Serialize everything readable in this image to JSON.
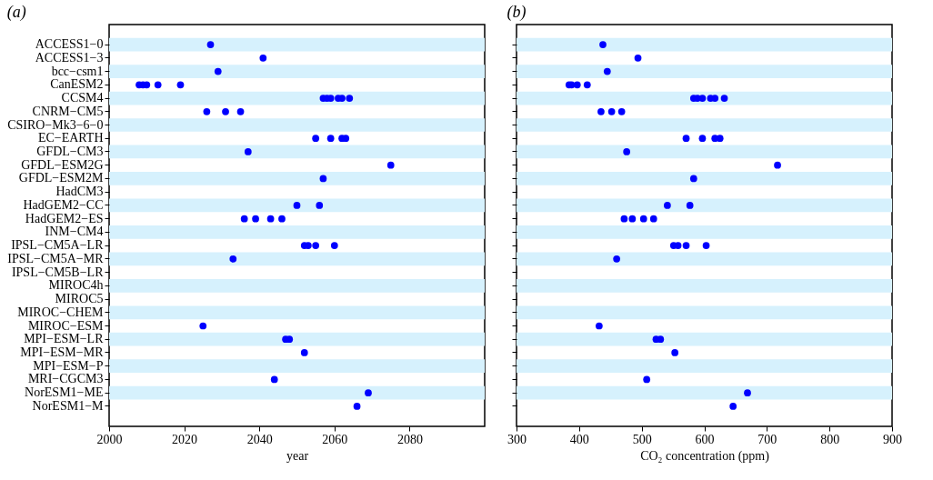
{
  "chart_data": [
    {
      "type": "scatter",
      "title": "(a)",
      "orientation": "horizontal",
      "xlabel": "year",
      "marker": "circle",
      "grid": false,
      "legend": false,
      "categories": [
        "ACCESS1−0",
        "ACCESS1−3",
        "bcc−csm1",
        "CanESM2",
        "CCSM4",
        "CNRM−CM5",
        "CSIRO−Mk3−6−0",
        "EC−EARTH",
        "GFDL−CM3",
        "GFDL−ESM2G",
        "GFDL−ESM2M",
        "HadCM3",
        "HadGEM2−CC",
        "HadGEM2−ES",
        "INM−CM4",
        "IPSL−CM5A−LR",
        "IPSL−CM5A−MR",
        "IPSL−CM5B−LR",
        "MIROC4h",
        "MIROC5",
        "MIROC−CHEM",
        "MIROC−ESM",
        "MPI−ESM−LR",
        "MPI−ESM−MR",
        "MPI−ESM−P",
        "MRI−CGCM3",
        "NorESM1−ME",
        "NorESM1−M"
      ],
      "xlim": [
        2000,
        2100
      ],
      "xticks": [
        2000,
        2020,
        2040,
        2060,
        2080
      ],
      "series": [
        {
          "color": "#0000ff",
          "values": [
            2027,
            2041,
            2029,
            2008,
            2057,
            2026,
            null,
            2055,
            2037,
            2075,
            2057,
            null,
            2050,
            2036,
            null,
            2052,
            2033,
            null,
            null,
            null,
            null,
            2025,
            2047,
            2052,
            null,
            2044,
            2069,
            2066
          ]
        },
        {
          "color": "#0000ff",
          "values": [
            null,
            null,
            null,
            2009,
            2058,
            2031,
            null,
            2059,
            null,
            null,
            null,
            null,
            2056,
            2039,
            null,
            2053,
            null,
            null,
            null,
            null,
            null,
            null,
            2048,
            null,
            null,
            null,
            null,
            null
          ]
        },
        {
          "color": "#0000ff",
          "values": [
            null,
            null,
            null,
            2010,
            2059,
            2035,
            null,
            2062,
            null,
            null,
            null,
            null,
            null,
            2043,
            null,
            2055,
            null,
            null,
            null,
            null,
            null,
            null,
            null,
            null,
            null,
            null,
            null,
            null
          ]
        },
        {
          "color": "#0000ff",
          "values": [
            null,
            null,
            null,
            2013,
            2061,
            null,
            null,
            2063,
            null,
            null,
            null,
            null,
            null,
            2046,
            null,
            2060,
            null,
            null,
            null,
            null,
            null,
            null,
            null,
            null,
            null,
            null,
            null,
            null
          ]
        },
        {
          "color": "#0000ff",
          "values": [
            null,
            null,
            null,
            2019,
            2062,
            null,
            null,
            null,
            null,
            null,
            null,
            null,
            null,
            null,
            null,
            null,
            null,
            null,
            null,
            null,
            null,
            null,
            null,
            null,
            null,
            null,
            null,
            null
          ]
        },
        {
          "color": "#0000ff",
          "values": [
            null,
            null,
            null,
            null,
            2064,
            null,
            null,
            null,
            null,
            null,
            null,
            null,
            null,
            null,
            null,
            null,
            null,
            null,
            null,
            null,
            null,
            null,
            null,
            null,
            null,
            null,
            null,
            null
          ]
        }
      ]
    },
    {
      "type": "scatter",
      "title": "(b)",
      "orientation": "horizontal",
      "xlabel": "CO₂ concentration (ppm)",
      "marker": "circle",
      "grid": false,
      "legend": false,
      "tick_labels": "x",
      "categories": [
        null,
        null,
        null,
        null,
        null,
        null,
        null,
        null,
        null,
        null,
        null,
        null,
        null,
        null,
        null,
        null,
        null,
        null,
        null,
        null,
        null,
        null,
        null,
        null,
        null,
        null,
        null,
        null
      ],
      "xlim": [
        300,
        900
      ],
      "xticks": [
        300,
        400,
        500,
        600,
        700,
        800,
        900
      ],
      "series": [
        {
          "color": "#0000ff",
          "values": [
            438,
            494,
            445,
            384,
            583,
            435,
            null,
            571,
            476,
            717,
            583,
            null,
            541,
            472,
            null,
            551,
            460,
            null,
            null,
            null,
            null,
            432,
            523,
            553,
            null,
            508,
            669,
            646
          ]
        },
        {
          "color": "#0000ff",
          "values": [
            null,
            null,
            null,
            388,
            589,
            452,
            null,
            597,
            null,
            null,
            null,
            null,
            577,
            485,
            null,
            558,
            null,
            null,
            null,
            null,
            null,
            null,
            530,
            null,
            null,
            null,
            null,
            null
          ]
        },
        {
          "color": "#0000ff",
          "values": [
            null,
            null,
            null,
            397,
            597,
            468,
            null,
            617,
            null,
            null,
            null,
            null,
            null,
            503,
            null,
            571,
            null,
            null,
            null,
            null,
            null,
            null,
            null,
            null,
            null,
            null,
            null,
            null
          ]
        },
        {
          "color": "#0000ff",
          "values": [
            null,
            null,
            null,
            413,
            610,
            null,
            null,
            625,
            null,
            null,
            null,
            null,
            null,
            519,
            null,
            603,
            null,
            null,
            null,
            null,
            null,
            null,
            null,
            null,
            null,
            null,
            null,
            null
          ]
        },
        {
          "color": "#0000ff",
          "values": [
            null,
            null,
            null,
            null,
            617,
            null,
            null,
            null,
            null,
            null,
            null,
            null,
            null,
            null,
            null,
            null,
            null,
            null,
            null,
            null,
            null,
            null,
            null,
            null,
            null,
            null,
            null,
            null
          ]
        },
        {
          "color": "#0000ff",
          "values": [
            null,
            null,
            null,
            null,
            632,
            null,
            null,
            null,
            null,
            null,
            null,
            null,
            null,
            null,
            null,
            null,
            null,
            null,
            null,
            null,
            null,
            null,
            null,
            null,
            null,
            null,
            null,
            null
          ]
        }
      ]
    }
  ]
}
